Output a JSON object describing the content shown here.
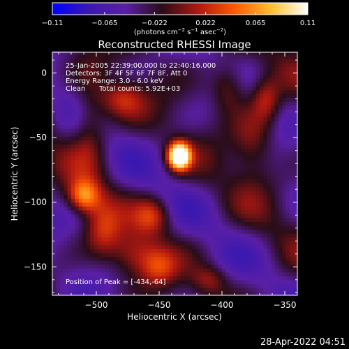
{
  "chart_data": {
    "type": "heatmap",
    "title": "Reconstructed RHESSI Image",
    "xlabel": "Heliocentric X (arcsec)",
    "ylabel": "Heliocentric Y (arcsec)",
    "xlim": [
      -535,
      -340
    ],
    "ylim": [
      -172,
      16
    ],
    "x_ticks": [
      -500,
      -450,
      -400,
      -350
    ],
    "y_ticks": [
      0,
      -50,
      -100,
      -150
    ],
    "colorbar": {
      "min": -0.11,
      "max": 0.11,
      "ticks": [
        -0.11,
        -0.065,
        -0.022,
        0.022,
        0.065,
        0.11
      ],
      "tick_labels": [
        "−0.11",
        "−0.065",
        "−0.022",
        "0.022",
        "0.065",
        "0.11"
      ],
      "units_parts": [
        "(photons cm",
        "−2",
        " s",
        "−1",
        " asec",
        "−2",
        ")"
      ],
      "colormap": [
        "#0000ff",
        "#3a18b0",
        "#5a1fa5",
        "#2a0d18",
        "#b01810",
        "#ff5a00",
        "#ffc030",
        "#ffffff"
      ]
    },
    "annotations": [
      "25-Jan-2005 22:39:00.000 to 22:40:16.000",
      "Detectors: 3F 4F 5F 6F 7F 8F, Att 0",
      "Energy Range: 3.0 - 6.0 keV",
      "Clean",
      "Total counts: 5.92E+03"
    ],
    "peak_label": "Position of Peak = [-434,-64]",
    "peak": [
      -434,
      -64
    ],
    "sources": [
      {
        "x": -434,
        "y": -64,
        "sx": 6,
        "sy": 7,
        "amp": 0.2
      },
      {
        "x": -480,
        "y": -20,
        "sx": 12,
        "sy": 10,
        "amp": 0.05
      },
      {
        "x": -505,
        "y": -40,
        "sx": 10,
        "sy": 25,
        "amp": 0.045
      },
      {
        "x": -510,
        "y": -95,
        "sx": 9,
        "sy": 9,
        "amp": 0.09
      },
      {
        "x": -495,
        "y": -120,
        "sx": 10,
        "sy": 15,
        "amp": 0.05
      },
      {
        "x": -455,
        "y": -110,
        "sx": 10,
        "sy": 10,
        "amp": 0.055
      },
      {
        "x": -470,
        "y": -140,
        "sx": 14,
        "sy": 12,
        "amp": 0.05
      },
      {
        "x": -450,
        "y": -150,
        "sx": 10,
        "sy": 10,
        "amp": 0.045
      },
      {
        "x": -395,
        "y": -10,
        "sx": 10,
        "sy": 14,
        "amp": 0.05
      },
      {
        "x": -365,
        "y": -20,
        "sx": 8,
        "sy": 12,
        "amp": 0.05
      },
      {
        "x": -375,
        "y": -55,
        "sx": 12,
        "sy": 20,
        "amp": 0.045
      },
      {
        "x": -410,
        "y": -160,
        "sx": 10,
        "sy": 8,
        "amp": 0.04
      }
    ]
  },
  "footer": {
    "timestamp": "28-Apr-2022 04:51"
  }
}
